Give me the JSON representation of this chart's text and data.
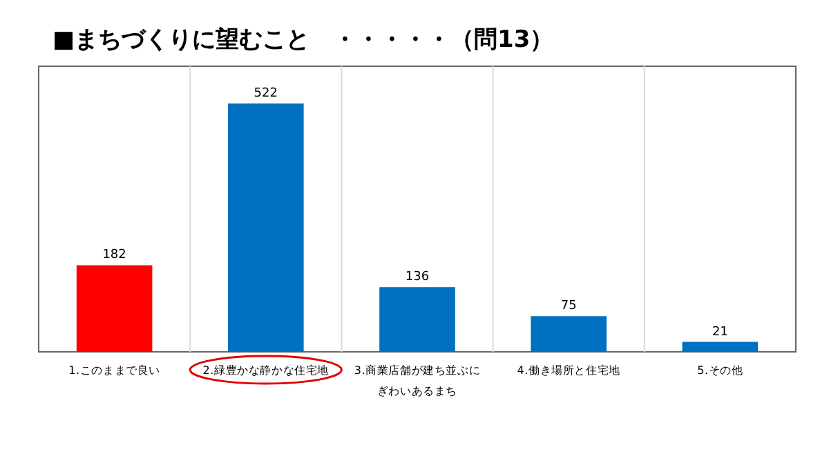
{
  "chart_data": {
    "type": "bar",
    "title": "■まちづくりに望むこと　・・・・・（問13）",
    "categories": [
      "1.このままで良い",
      "2.緑豊かな静かな住宅地",
      "3.商業店舗が建ち並ぶにぎわいあるまち",
      "4.働き場所と住宅地",
      "5.その他"
    ],
    "values": [
      182,
      522,
      136,
      75,
      21
    ],
    "colors": [
      "#ff0000",
      "#0070c0",
      "#0070c0",
      "#0070c0",
      "#0070c0"
    ],
    "data_labels": true,
    "grid": "x"
  }
}
